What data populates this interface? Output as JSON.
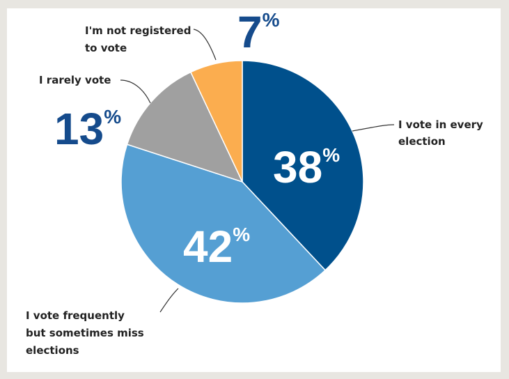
{
  "chart_data": {
    "type": "pie",
    "title": "",
    "start_angle_deg": 0,
    "direction": "clockwise",
    "slices": [
      {
        "label": "I vote in every election",
        "value": 38,
        "display": "38",
        "color": "#00508c"
      },
      {
        "label": "I vote frequently but sometimes miss elections",
        "value": 42,
        "display": "42",
        "color": "#559fd3"
      },
      {
        "label": "I rarely vote",
        "value": 13,
        "display": "13",
        "color": "#a0a0a0"
      },
      {
        "label": "I'm not registered to vote",
        "value": 7,
        "display": "7",
        "color": "#fbad4f"
      }
    ],
    "percent_symbol": "%",
    "label_color": "#222222",
    "outside_value_color": "#154b8c",
    "inside_value_color": "#ffffff"
  },
  "labels": {
    "every": [
      "I vote in every",
      "election"
    ],
    "frequent": [
      "I vote frequently",
      "but sometimes miss",
      "elections"
    ],
    "rarely": [
      "I rarely vote"
    ],
    "notreg": [
      "I'm not registered",
      "to vote"
    ]
  }
}
